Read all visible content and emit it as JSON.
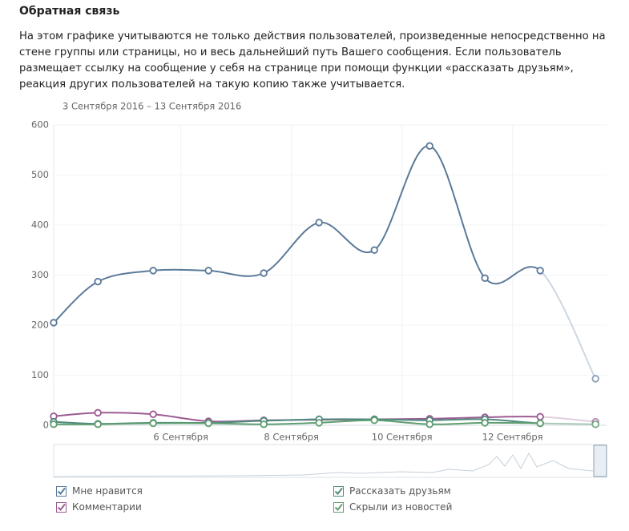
{
  "chart_data": {
    "type": "line",
    "title": "Обратная связь",
    "subtitle": "На этом графике учитываются не только действия пользователей, произведенные непосредственно на стене группы или страницы, но и весь дальнейший путь Вашего сообщения. Если пользователь размещает ссылку на сообщение у себя на странице при помощи функции «рассказать друзьям», реакция других пользователей на такую копию также учитывается.",
    "date_range": "3 Сентября 2016 – 13 Сентября 2016",
    "x": [
      3.7,
      4.5,
      5.5,
      6.5,
      7.5,
      8.5,
      9.5,
      10.5,
      11.5,
      12.5,
      13.5
    ],
    "xlim": [
      3.7,
      13.7
    ],
    "xticks": [
      {
        "value": 6,
        "label": "6 Сентября"
      },
      {
        "value": 8,
        "label": "8 Сентября"
      },
      {
        "value": 10,
        "label": "10 Сентября"
      },
      {
        "value": 12,
        "label": "12 Сентября"
      }
    ],
    "ylim": [
      0,
      600
    ],
    "yticks": [
      0,
      100,
      200,
      300,
      400,
      500,
      600
    ],
    "grid": true,
    "series": [
      {
        "name": "Мне нравится",
        "color": "#5b7a99",
        "values": [
          205,
          287,
          309,
          309,
          304,
          405,
          350,
          558,
          294,
          309,
          93
        ]
      },
      {
        "name": "Комментарии",
        "color": "#9c5b92",
        "values": [
          18,
          25,
          22,
          8,
          10,
          11,
          12,
          13,
          16,
          17,
          7
        ]
      },
      {
        "name": "Рассказать друзьям",
        "color": "#4e8a7e",
        "values": [
          7,
          3,
          5,
          5,
          9,
          12,
          12,
          10,
          12,
          4,
          2
        ]
      },
      {
        "name": "Скрыли из новостей",
        "color": "#5f9e70",
        "values": [
          2,
          2,
          4,
          4,
          2,
          5,
          10,
          2,
          5,
          4,
          2
        ]
      }
    ]
  }
}
